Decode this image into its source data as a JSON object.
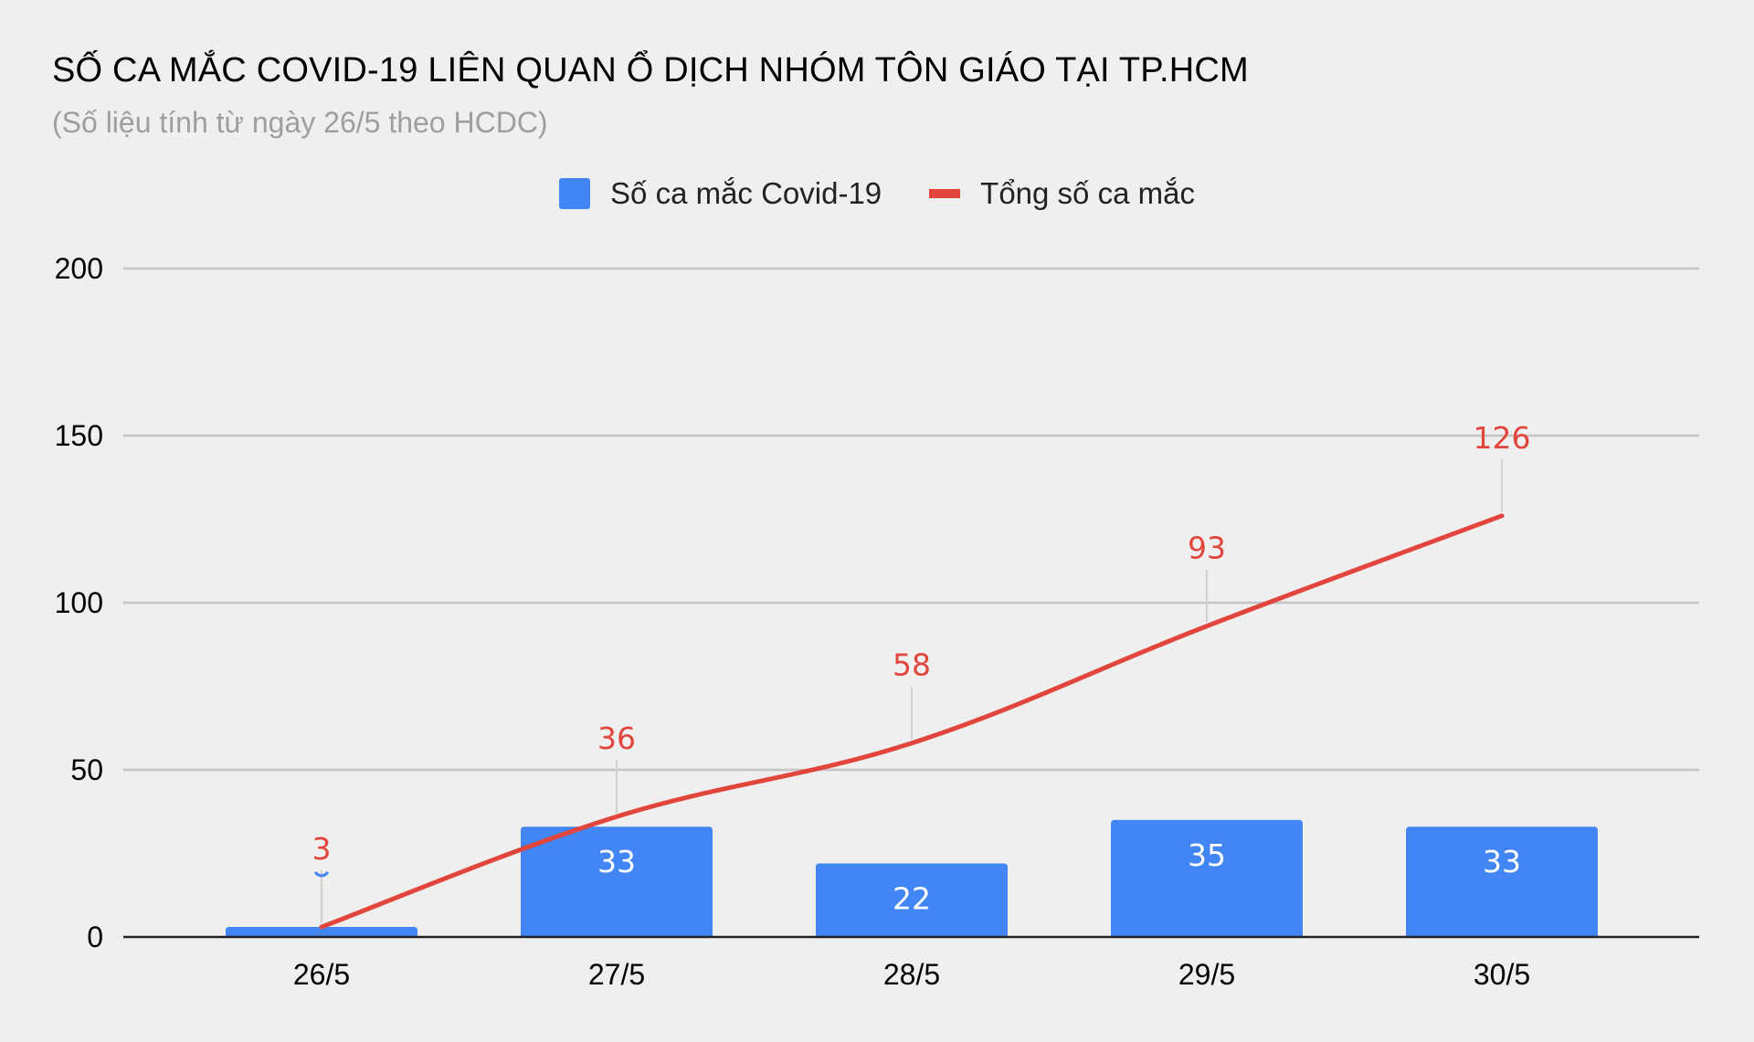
{
  "header": {
    "title": "SỐ CA MẮC COVID-19 LIÊN QUAN Ổ DỊCH NHÓM TÔN GIÁO TẠI TP.HCM",
    "subtitle": "(Số liệu tính từ ngày 26/5 theo HCDC)"
  },
  "colors": {
    "bar": "#4285f4",
    "line": "#e2453c",
    "grid": "#c4c4c4",
    "leader": "#d0d0d0",
    "axis": "#222222"
  },
  "chart_data": {
    "type": "bar",
    "categories": [
      "26/5",
      "27/5",
      "28/5",
      "29/5",
      "30/5"
    ],
    "series": [
      {
        "name": "Số ca mắc Covid-19",
        "kind": "bar",
        "values": [
          3,
          33,
          22,
          35,
          33
        ]
      },
      {
        "name": "Tổng số ca mắc",
        "kind": "line",
        "values": [
          3,
          36,
          58,
          93,
          126
        ]
      }
    ],
    "ylim": [
      0,
      200
    ],
    "yticks": [
      0,
      50,
      100,
      150,
      200
    ],
    "grid": true,
    "legend_position": "top-center",
    "xlabel": "",
    "ylabel": ""
  }
}
